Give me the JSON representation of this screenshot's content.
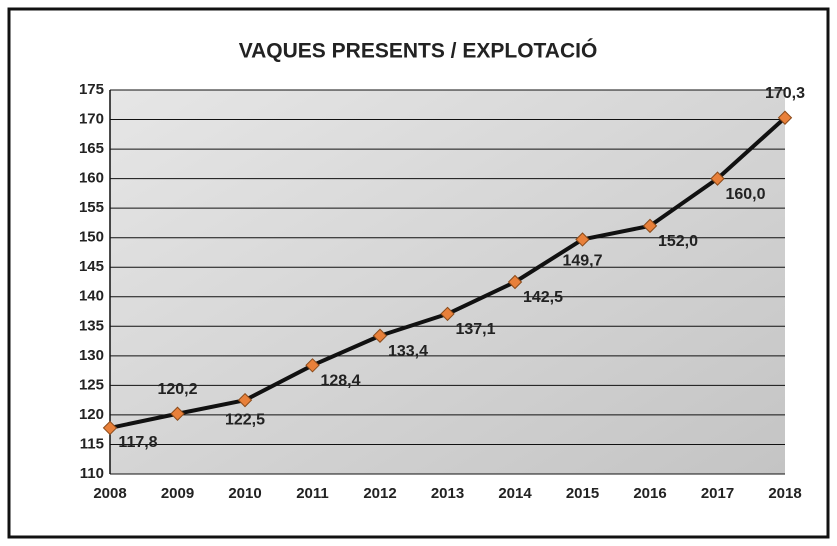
{
  "chart_data": {
    "type": "line",
    "title": "VAQUES PRESENTS / EXPLOTACIÓ",
    "categories": [
      "2008",
      "2009",
      "2010",
      "2011",
      "2012",
      "2013",
      "2014",
      "2015",
      "2016",
      "2017",
      "2018"
    ],
    "series": [
      {
        "name": "Vaques presents / explotació",
        "color": "#e8803a",
        "values": [
          117.8,
          120.2,
          122.5,
          128.4,
          133.4,
          137.1,
          142.5,
          149.7,
          152.0,
          160.0,
          170.3
        ],
        "value_labels": [
          "117,8",
          "120,2",
          "122,5",
          "128,4",
          "133,4",
          "137,1",
          "142,5",
          "149,7",
          "152,0",
          "160,0",
          "170,3"
        ]
      }
    ],
    "ylim": [
      110,
      175
    ],
    "yticks": [
      110,
      115,
      120,
      125,
      130,
      135,
      140,
      145,
      150,
      155,
      160,
      165,
      170,
      175
    ],
    "grid": true
  }
}
